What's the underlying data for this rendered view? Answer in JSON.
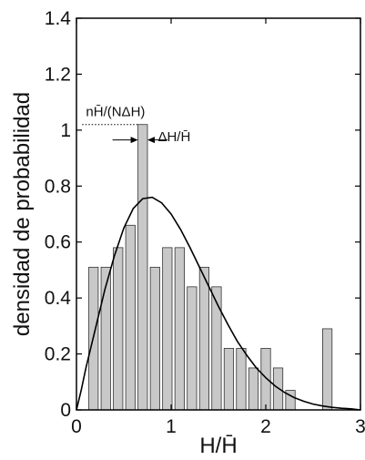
{
  "chart_data": {
    "type": "bar",
    "title": "",
    "xlabel": "H/H̄",
    "ylabel": "densidad de probabilidad",
    "xlim": [
      0,
      3
    ],
    "ylim": [
      0,
      1.4
    ],
    "xticks": [
      0,
      1,
      2,
      3
    ],
    "xtick_labels": [
      "0",
      "1",
      "2",
      "3"
    ],
    "yticks": [
      0,
      0.2,
      0.4,
      0.6,
      0.8,
      1.0,
      1.2,
      1.4
    ],
    "ytick_labels": [
      "0",
      "0.2",
      "0.4",
      "0.6",
      "0.8",
      "1",
      "1.2",
      "1.4"
    ],
    "grid": false,
    "bar_color": "#c8c8c8",
    "bar_edge_color": "#333333",
    "bars": [
      {
        "x": 0.18,
        "value": 0.51
      },
      {
        "x": 0.31,
        "value": 0.51
      },
      {
        "x": 0.44,
        "value": 0.58
      },
      {
        "x": 0.57,
        "value": 0.66
      },
      {
        "x": 0.7,
        "value": 1.02
      },
      {
        "x": 0.83,
        "value": 0.51
      },
      {
        "x": 0.96,
        "value": 0.58
      },
      {
        "x": 1.09,
        "value": 0.58
      },
      {
        "x": 1.22,
        "value": 0.44
      },
      {
        "x": 1.35,
        "value": 0.51
      },
      {
        "x": 1.48,
        "value": 0.44
      },
      {
        "x": 1.61,
        "value": 0.22
      },
      {
        "x": 1.74,
        "value": 0.22
      },
      {
        "x": 1.87,
        "value": 0.15
      },
      {
        "x": 2.0,
        "value": 0.22
      },
      {
        "x": 2.13,
        "value": 0.15
      },
      {
        "x": 2.26,
        "value": 0.07
      },
      {
        "x": 2.65,
        "value": 0.29
      }
    ],
    "bar_width": 0.1,
    "curve": {
      "x": [
        0,
        0.05,
        0.1,
        0.2,
        0.3,
        0.4,
        0.5,
        0.6,
        0.7,
        0.8,
        0.9,
        1.0,
        1.1,
        1.2,
        1.3,
        1.4,
        1.5,
        1.6,
        1.7,
        1.8,
        1.9,
        2.0,
        2.1,
        2.2,
        2.3,
        2.4,
        2.5,
        2.6,
        2.7,
        2.8,
        2.9,
        3.0
      ],
      "y": [
        0.0,
        0.07,
        0.15,
        0.29,
        0.43,
        0.55,
        0.65,
        0.72,
        0.755,
        0.76,
        0.74,
        0.7,
        0.645,
        0.58,
        0.51,
        0.44,
        0.37,
        0.305,
        0.245,
        0.195,
        0.15,
        0.115,
        0.085,
        0.062,
        0.044,
        0.031,
        0.021,
        0.014,
        0.009,
        0.006,
        0.004,
        0.0
      ]
    },
    "annotations": [
      {
        "text": "nH̄/(NΔH)",
        "x": 0.1,
        "y": 1.05
      },
      {
        "text": "ΔH/H̄",
        "x": 0.86,
        "y": 0.96
      }
    ]
  }
}
